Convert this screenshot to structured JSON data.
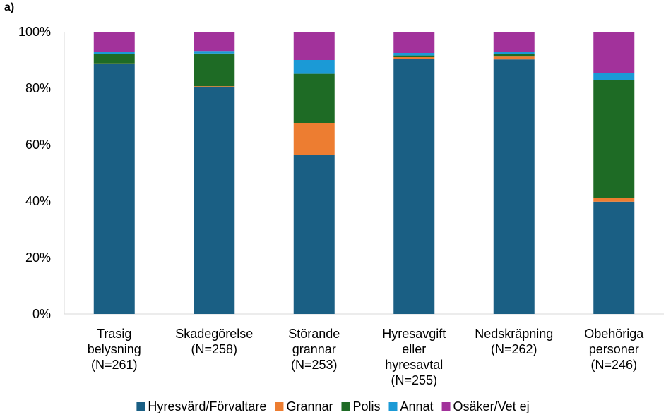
{
  "panel_label": "a)",
  "chart_data": {
    "type": "bar",
    "stacked": true,
    "percent": true,
    "title": "",
    "xlabel": "",
    "ylabel": "",
    "ylim": [
      0,
      100
    ],
    "yticks": [
      "0%",
      "20%",
      "40%",
      "60%",
      "80%",
      "100%"
    ],
    "categories": [
      [
        "Trasig",
        "belysning",
        "(N=261)"
      ],
      [
        "Skadegörelse",
        "(N=258)"
      ],
      [
        "Störande",
        "grannar",
        "(N=253)"
      ],
      [
        "Hyresavgift",
        "eller",
        "hyresavtal",
        "(N=255)"
      ],
      [
        "Nedskräpning",
        "(N=262)"
      ],
      [
        "Obehöriga",
        "personer",
        "(N=246)"
      ]
    ],
    "series": [
      {
        "name": "Hyresvärd/Förvaltare",
        "color": "#1a5f84",
        "values": [
          88.5,
          80.5,
          56.5,
          90.5,
          90.2,
          39.8
        ]
      },
      {
        "name": "Grannar",
        "color": "#ed7d31",
        "values": [
          0.3,
          0.2,
          11.0,
          0.5,
          1.0,
          1.3
        ]
      },
      {
        "name": "Polis",
        "color": "#1e6b25",
        "values": [
          3.2,
          11.6,
          17.6,
          0.6,
          1.0,
          41.7
        ]
      },
      {
        "name": "Annat",
        "color": "#1b9ad6",
        "values": [
          1.0,
          0.9,
          4.9,
          0.9,
          0.7,
          2.5
        ]
      },
      {
        "name": "Osäker/Vet ej",
        "color": "#a2329b",
        "values": [
          7.0,
          6.8,
          10.0,
          7.5,
          7.1,
          14.7
        ]
      }
    ],
    "legend_position": "bottom",
    "grid": false
  }
}
